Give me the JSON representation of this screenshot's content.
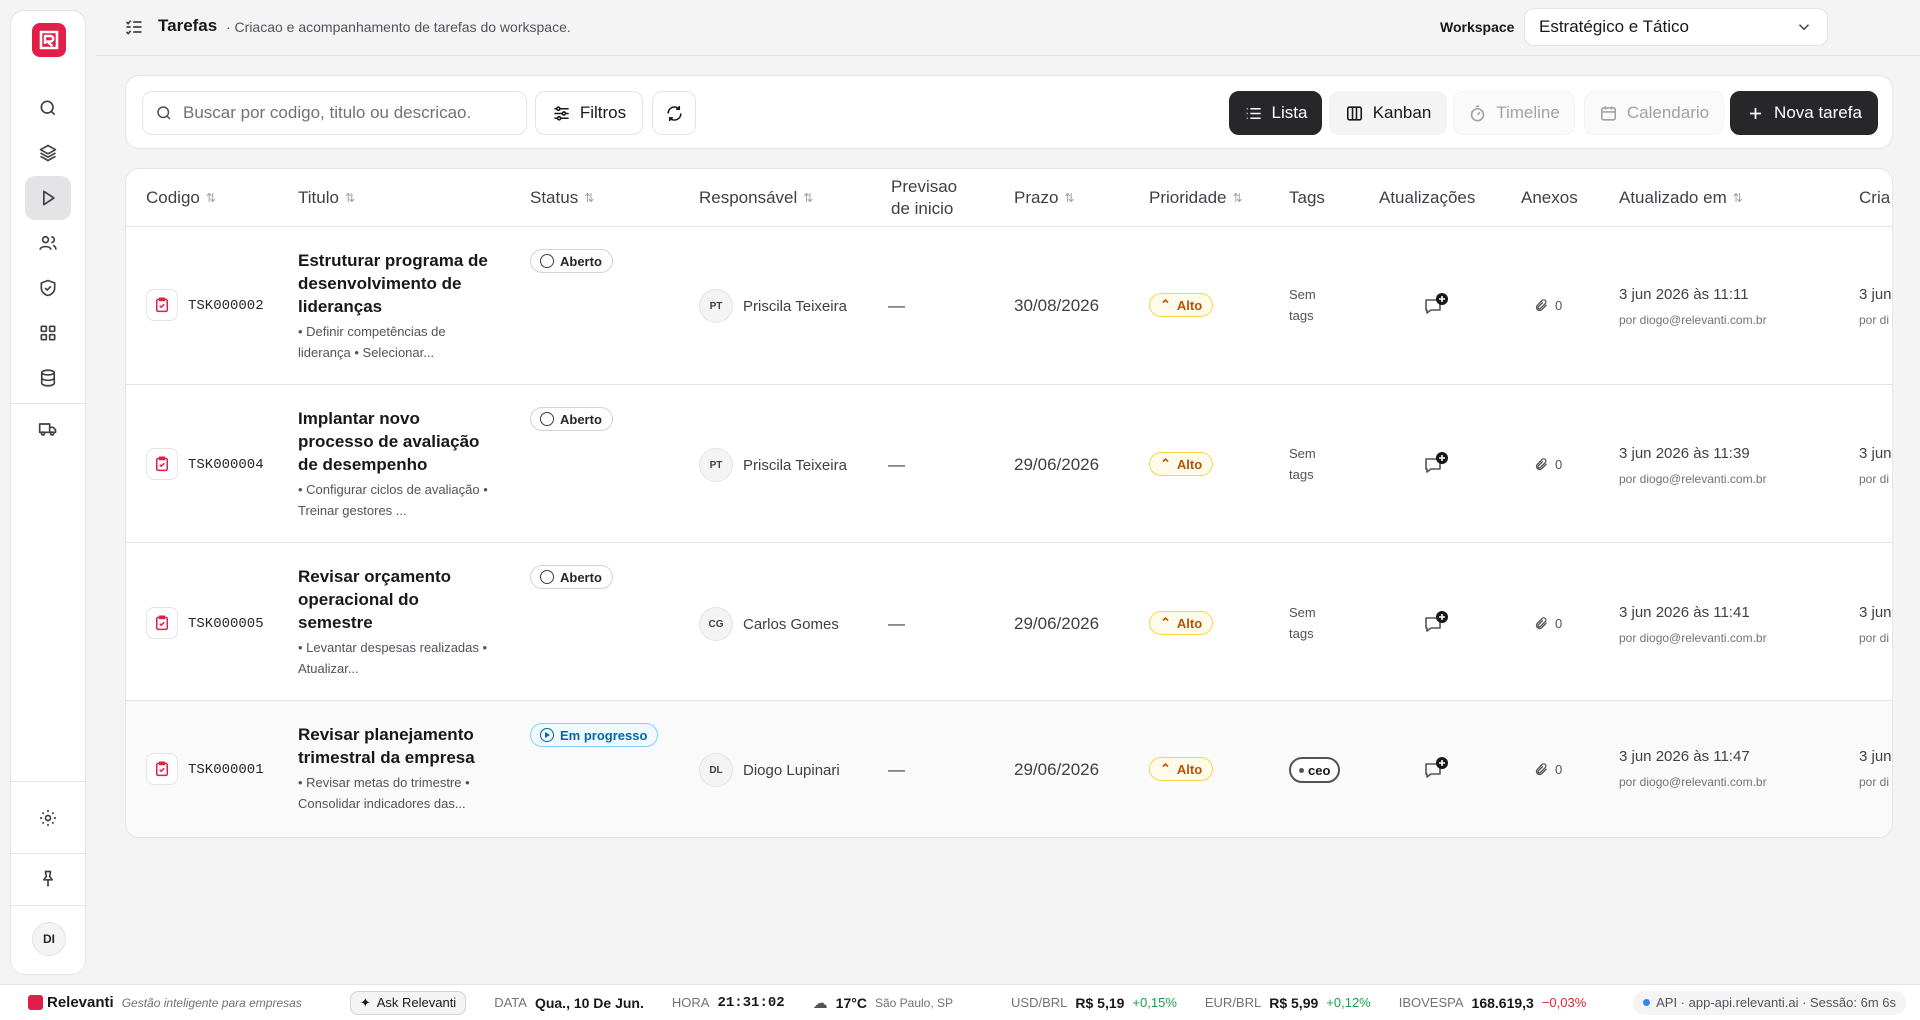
{
  "header": {
    "title": "Tarefas",
    "subtitle": "· Criacao e acompanhamento de tarefas do workspace.",
    "workspace_label": "Workspace",
    "workspace_value": "Estratégico e Tático"
  },
  "sidebar": {
    "user_initials": "DI"
  },
  "toolbar": {
    "search_placeholder": "Buscar por codigo, titulo ou descricao.",
    "filters_label": "Filtros",
    "views": {
      "list": "Lista",
      "kanban": "Kanban",
      "timeline": "Timeline",
      "calendar": "Calendario"
    },
    "new_task_label": "Nova tarefa"
  },
  "table": {
    "columns": {
      "codigo": "Codigo",
      "titulo": "Titulo",
      "status": "Status",
      "responsavel": "Responsável",
      "previsao": "Previsao de inicio",
      "prazo": "Prazo",
      "prioridade": "Prioridade",
      "tags": "Tags",
      "atualizacoes": "Atualizações",
      "anexos": "Anexos",
      "atualizado_em": "Atualizado em",
      "criado_em": "Cria"
    },
    "sort_glyph": "⇅",
    "rows": [
      {
        "code": "TSK000002",
        "title": "Estruturar programa de desenvolvimento de lideranças",
        "desc": "• Definir competências de liderança • Selecionar...",
        "status": "Aberto",
        "initials": "PT",
        "responsible": "Priscila Teixeira",
        "start": "—",
        "deadline": "30/08/2026",
        "priority": "Alto",
        "tags": "Sem tags",
        "attachments": "0",
        "updated": "3 jun 2026 às 11:11",
        "updated_by": "por diogo@relevanti.com.br",
        "created": "3 jun",
        "created_by": "por di"
      },
      {
        "code": "TSK000004",
        "title": "Implantar novo processo de avaliação de desempenho",
        "desc": "• Configurar ciclos de avaliação • Treinar gestores ...",
        "status": "Aberto",
        "initials": "PT",
        "responsible": "Priscila Teixeira",
        "start": "—",
        "deadline": "29/06/2026",
        "priority": "Alto",
        "tags": "Sem tags",
        "attachments": "0",
        "updated": "3 jun 2026 às 11:39",
        "updated_by": "por diogo@relevanti.com.br",
        "created": "3 jun",
        "created_by": "por di"
      },
      {
        "code": "TSK000005",
        "title": "Revisar orçamento operacional do semestre",
        "desc": "• Levantar despesas realizadas • Atualizar...",
        "status": "Aberto",
        "initials": "CG",
        "responsible": "Carlos Gomes",
        "start": "—",
        "deadline": "29/06/2026",
        "priority": "Alto",
        "tags": "Sem tags",
        "attachments": "0",
        "updated": "3 jun 2026 às 11:41",
        "updated_by": "por diogo@relevanti.com.br",
        "created": "3 jun",
        "created_by": "por di"
      },
      {
        "code": "TSK000001",
        "title": "Revisar planejamento trimestral da empresa",
        "desc": "• Revisar metas do trimestre • Consolidar indicadores das...",
        "status": "Em progresso",
        "initials": "DL",
        "responsible": "Diogo Lupinari",
        "start": "—",
        "deadline": "29/06/2026",
        "priority": "Alto",
        "tag_chip": "ceo",
        "attachments": "0",
        "updated": "3 jun 2026 às 11:47",
        "updated_by": "por diogo@relevanti.com.br",
        "created": "3 jun",
        "created_by": "por di"
      }
    ]
  },
  "footer": {
    "brand": "Relevanti",
    "tagline": "Gestão inteligente para empresas",
    "ask_label": "Ask Relevanti",
    "date_label": "DATA",
    "date_value": "Qua., 10 De Jun.",
    "time_label": "HORA",
    "time_value": "21:31:02",
    "weather_temp": "17°C",
    "weather_city": "São Paulo, SP",
    "usd_label": "USD/BRL",
    "usd_value": "R$ 5,19",
    "usd_change": "+0,15%",
    "eur_label": "EUR/BRL",
    "eur_value": "R$ 5,99",
    "eur_change": "+0,12%",
    "ibov_label": "IBOVESPA",
    "ibov_value": "168.619,3",
    "ibov_change": "−0,03%",
    "api_text": "API · app-api.relevanti.ai · Sessão: 6m 6s"
  },
  "colors": {
    "accent": "#e11d48",
    "dark_button": "#27272a",
    "priority": "#b45309",
    "progress": "#0369a1"
  }
}
